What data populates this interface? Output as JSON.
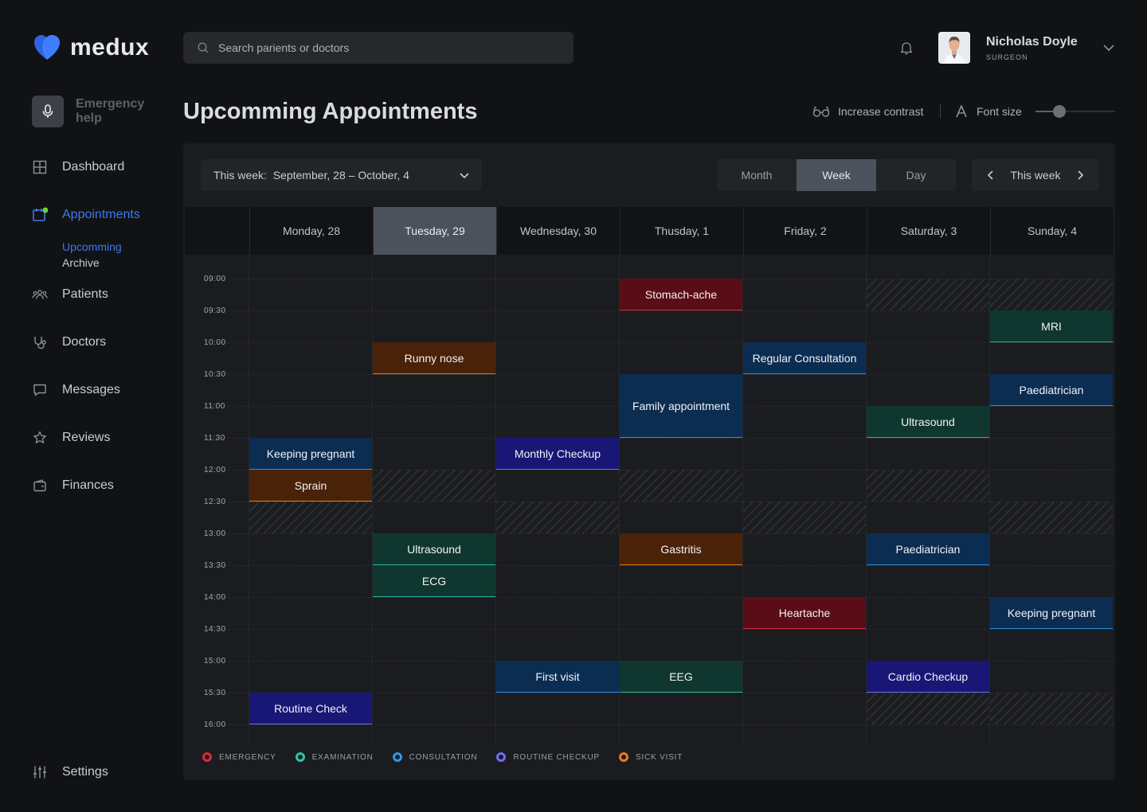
{
  "brand": {
    "name": "medux"
  },
  "sidebar": {
    "emergency_label": "Emergency help",
    "items": [
      {
        "id": "dashboard",
        "label": "Dashboard",
        "icon": "dashboard-icon"
      },
      {
        "id": "appointments",
        "label": "Appointments",
        "icon": "calendar-icon",
        "active": true
      },
      {
        "id": "patients",
        "label": "Patients",
        "icon": "patients-icon"
      },
      {
        "id": "doctors",
        "label": "Doctors",
        "icon": "stethoscope-icon"
      },
      {
        "id": "messages",
        "label": "Messages",
        "icon": "message-icon"
      },
      {
        "id": "reviews",
        "label": "Reviews",
        "icon": "star-icon"
      },
      {
        "id": "finances",
        "label": "Finances",
        "icon": "wallet-icon"
      }
    ],
    "sub_items": [
      {
        "label": "Upcomming",
        "active": true
      },
      {
        "label": "Archive",
        "active": false
      }
    ],
    "settings_label": "Settings"
  },
  "header": {
    "search_placeholder": "Search parients or doctors",
    "user": {
      "name": "Nicholas Doyle",
      "role": "SURGEON"
    }
  },
  "page": {
    "title": "Upcomming Appointments",
    "contrast_label": "Increase contrast",
    "font_size_label": "Font size",
    "font_size_level": 0.3
  },
  "calendar": {
    "week_select": "This week:  September, 28 – October, 4",
    "views": [
      "Month",
      "Week",
      "Day"
    ],
    "active_view": "Week",
    "nav_label": "This week",
    "days": [
      "Monday, 28",
      "Tuesday, 29",
      "Wednesday, 30",
      "Thusday, 1",
      "Friday, 2",
      "Saturday, 3",
      "Sunday, 4"
    ],
    "today_index": 1,
    "times": [
      "09:00",
      "09:30",
      "10:00",
      "10:30",
      "11:00",
      "11:30",
      "12:00",
      "12:30",
      "13:00",
      "13:30",
      "14:00",
      "14:30",
      "15:00",
      "15:30",
      "16:00"
    ],
    "blocked": [
      {
        "day": 0,
        "start": "12:30",
        "end": "13:00"
      },
      {
        "day": 1,
        "start": "12:00",
        "end": "12:30"
      },
      {
        "day": 2,
        "start": "12:30",
        "end": "13:00"
      },
      {
        "day": 3,
        "start": "12:00",
        "end": "12:30"
      },
      {
        "day": 4,
        "start": "12:30",
        "end": "13:00"
      },
      {
        "day": 5,
        "start": "09:00",
        "end": "09:30"
      },
      {
        "day": 5,
        "start": "12:00",
        "end": "12:30"
      },
      {
        "day": 5,
        "start": "15:30",
        "end": "16:00"
      },
      {
        "day": 6,
        "start": "09:00",
        "end": "09:30"
      },
      {
        "day": 6,
        "start": "12:30",
        "end": "13:00"
      },
      {
        "day": 6,
        "start": "15:30",
        "end": "16:00"
      }
    ],
    "appointments": [
      {
        "day": 0,
        "start": "11:30",
        "end": "12:00",
        "title": "Keeping pregnant",
        "type": "consultation"
      },
      {
        "day": 0,
        "start": "12:00",
        "end": "12:30",
        "title": "Sprain",
        "type": "sick"
      },
      {
        "day": 0,
        "start": "15:30",
        "end": "16:00",
        "title": "Routine Check",
        "type": "routine"
      },
      {
        "day": 1,
        "start": "10:00",
        "end": "10:30",
        "title": "Runny nose",
        "type": "sick"
      },
      {
        "day": 1,
        "start": "13:00",
        "end": "13:30",
        "title": "Ultrasound",
        "type": "examination"
      },
      {
        "day": 1,
        "start": "13:30",
        "end": "14:00",
        "title": "ECG",
        "type": "examination"
      },
      {
        "day": 2,
        "start": "11:30",
        "end": "12:00",
        "title": "Monthly Checkup",
        "type": "routine"
      },
      {
        "day": 2,
        "start": "15:00",
        "end": "15:30",
        "title": "First visit",
        "type": "consultation"
      },
      {
        "day": 3,
        "start": "09:00",
        "end": "09:30",
        "title": "Stomach-ache",
        "type": "emergency"
      },
      {
        "day": 3,
        "start": "10:30",
        "end": "11:30",
        "title": "Family appointment",
        "type": "consultation"
      },
      {
        "day": 3,
        "start": "13:00",
        "end": "13:30",
        "title": "Gastritis",
        "type": "sick"
      },
      {
        "day": 3,
        "start": "15:00",
        "end": "15:30",
        "title": "EEG",
        "type": "examination"
      },
      {
        "day": 4,
        "start": "10:00",
        "end": "10:30",
        "title": "Regular Consultation",
        "type": "consultation"
      },
      {
        "day": 4,
        "start": "14:00",
        "end": "14:30",
        "title": "Heartache",
        "type": "emergency"
      },
      {
        "day": 5,
        "start": "11:00",
        "end": "11:30",
        "title": "Ultrasound",
        "type": "examination"
      },
      {
        "day": 5,
        "start": "13:00",
        "end": "13:30",
        "title": "Paediatrician",
        "type": "consultation"
      },
      {
        "day": 5,
        "start": "15:00",
        "end": "15:30",
        "title": "Cardio Checkup",
        "type": "routine"
      },
      {
        "day": 6,
        "start": "09:30",
        "end": "10:00",
        "title": "MRI",
        "type": "examination"
      },
      {
        "day": 6,
        "start": "10:30",
        "end": "11:00",
        "title": "Paediatrician",
        "type": "consultation"
      },
      {
        "day": 6,
        "start": "14:00",
        "end": "14:30",
        "title": "Keeping pregnant",
        "type": "consultation"
      }
    ],
    "legend": [
      {
        "type": "emergency",
        "label": "EMERGENCY",
        "color": "#e0283a"
      },
      {
        "type": "examination",
        "label": "EXAMINATION",
        "color": "#2ec4aa"
      },
      {
        "type": "consultation",
        "label": "CONSULTATION",
        "color": "#2f95ea"
      },
      {
        "type": "routine",
        "label": "ROUTINE CHECKUP",
        "color": "#6f6ef2"
      },
      {
        "type": "sick",
        "label": "SICK VISIT",
        "color": "#ec7a20"
      }
    ]
  },
  "colors": {
    "accent": "#3e78f0",
    "status_dot": "#6fcf3b"
  }
}
